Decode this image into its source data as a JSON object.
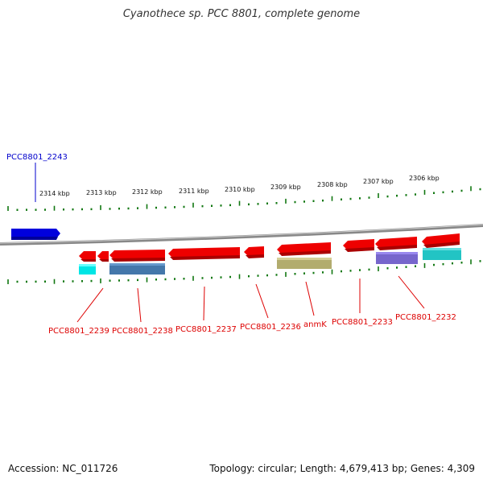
{
  "title": "Cyanothece sp. PCC 8801, complete genome",
  "footer": {
    "accession": "Accession: NC_011726",
    "stats": "Topology: circular; Length: 4,679,413 bp; Genes: 4,309"
  },
  "colors": {
    "gene_red": "#ee0000",
    "gene_blue": "#0000dd",
    "label_red": "#dd0000",
    "label_blue": "#0000cc",
    "tick_green": "#117711",
    "backbone": "#888888",
    "feature_cyan": "#00e5e5",
    "feature_steelblue": "#4477aa",
    "feature_olive": "#b2ac6e",
    "feature_purple": "#7766cc",
    "feature_teal": "#22c4c4"
  },
  "scale_labels": [
    "2314 kbp",
    "2313 kbp",
    "2312 kbp",
    "2311 kbp",
    "2310 kbp",
    "2309 kbp",
    "2308 kbp",
    "2307 kbp",
    "2306 kbp"
  ],
  "gene_labels": {
    "top": "PCC8801_2243",
    "bottom": [
      "PCC8801_2239",
      "PCC8801_2238",
      "PCC8801_2237",
      "PCC8801_2236",
      "anmK",
      "PCC8801_2233",
      "PCC8801_2232"
    ]
  }
}
